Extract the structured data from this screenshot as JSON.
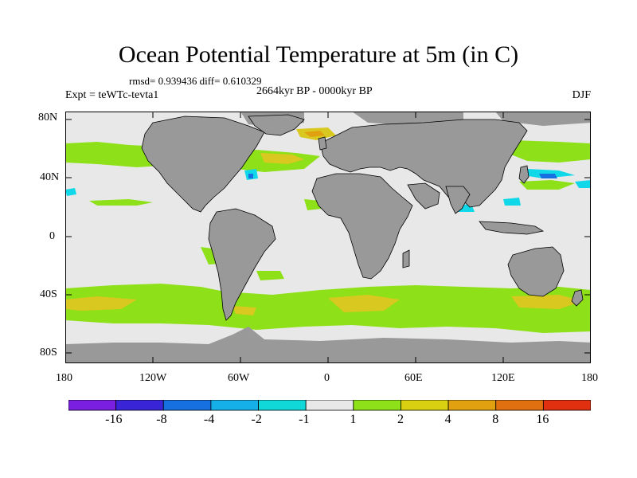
{
  "title": "Ocean Potential Temperature at 5m (in C)",
  "stats": "rmsd= 0.939436 diff= 0.610329",
  "period": "2664kyr BP - 0000kyr BP",
  "experiment": "Expt = teWTc-tevta1",
  "season": "DJF",
  "lat_labels": [
    "80N",
    "40N",
    "0",
    "40S",
    "80S"
  ],
  "lon_labels": [
    "180",
    "120W",
    "60W",
    "0",
    "60E",
    "120E",
    "180"
  ],
  "colorbar": {
    "labels": [
      "-16",
      "-8",
      "-4",
      "-2",
      "-1",
      "1",
      "2",
      "4",
      "8",
      "16"
    ],
    "colors": [
      "#7a1ee0",
      "#3a24d8",
      "#1670e0",
      "#16b0e8",
      "#10d8d8",
      "#e8e8e8",
      "#8ee018",
      "#d8d010",
      "#e0a010",
      "#e07010",
      "#e03010"
    ]
  },
  "colors": {
    "land": "#999999",
    "ocean_neutral": "#e8e8e8",
    "green": "#8ee018",
    "yellow": "#d8c820",
    "orange": "#e0a010",
    "cyan": "#10d8e8",
    "blue": "#1670e0"
  }
}
